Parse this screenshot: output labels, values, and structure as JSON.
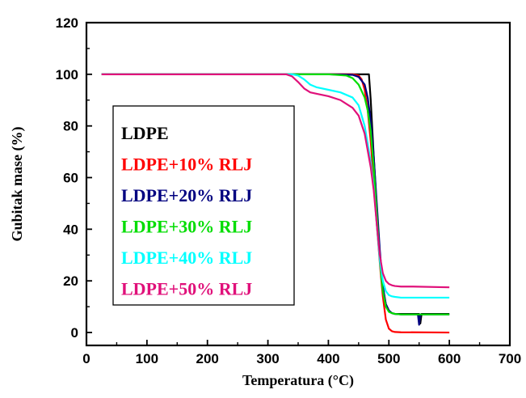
{
  "chart_data": {
    "type": "line",
    "title": "",
    "xlabel": "Temperatura (°C)",
    "ylabel": "Gubitak mase (%)",
    "xlim": [
      0,
      700
    ],
    "ylim": [
      -5,
      120
    ],
    "xticks": [
      0,
      100,
      200,
      300,
      400,
      500,
      600,
      700
    ],
    "yticks": [
      0,
      20,
      40,
      60,
      80,
      100,
      120
    ],
    "grid": false,
    "legend_position": "left",
    "series": [
      {
        "name": "LDPE",
        "color": "#000000",
        "x": [
          25,
          300,
          400,
          460,
          467,
          470,
          475,
          480,
          485,
          490,
          495,
          500,
          505,
          510,
          520,
          550,
          552,
          554,
          556,
          560,
          580,
          600
        ],
        "y": [
          100,
          100,
          100,
          100,
          100,
          90,
          68,
          48,
          30,
          17,
          11,
          8.5,
          7.5,
          7.2,
          7.2,
          7.2,
          3.5,
          7.2,
          7.2,
          7.2,
          7.2,
          7.2
        ]
      },
      {
        "name": "LDPE+10% RLJ",
        "color": "#ff0000",
        "x": [
          25,
          300,
          400,
          440,
          450,
          455,
          460,
          465,
          470,
          475,
          480,
          485,
          490,
          495,
          500,
          505,
          510,
          520,
          600
        ],
        "y": [
          100,
          100,
          100,
          100,
          99.5,
          98,
          94,
          86,
          74,
          58,
          42,
          27,
          14,
          5,
          1.5,
          0.5,
          0.2,
          0.1,
          0
        ]
      },
      {
        "name": "LDPE+20% RLJ",
        "color": "#000080",
        "x": [
          25,
          300,
          400,
          440,
          450,
          460,
          465,
          470,
          475,
          480,
          485,
          490,
          495,
          500,
          505,
          510,
          520,
          548,
          550,
          552,
          554,
          556,
          580,
          600
        ],
        "y": [
          100,
          100,
          100,
          99.8,
          99,
          96,
          91,
          82,
          68,
          50,
          32,
          18,
          11,
          8.5,
          7.5,
          7.2,
          7,
          7,
          3,
          7,
          7,
          7,
          7,
          7
        ]
      },
      {
        "name": "LDPE+30% RLJ",
        "color": "#00dd00",
        "x": [
          25,
          300,
          400,
          430,
          440,
          450,
          460,
          465,
          470,
          475,
          480,
          485,
          490,
          495,
          500,
          505,
          510,
          520,
          600
        ],
        "y": [
          100,
          100,
          100,
          99.5,
          98.5,
          96,
          91,
          86,
          78,
          64,
          46,
          28,
          16,
          10,
          8,
          7.5,
          7.2,
          7,
          7
        ]
      },
      {
        "name": "LDPE+40% RLJ",
        "color": "#00ffff",
        "x": [
          25,
          300,
          340,
          350,
          360,
          370,
          380,
          400,
          420,
          440,
          450,
          460,
          470,
          475,
          480,
          485,
          490,
          495,
          500,
          505,
          510,
          520,
          540,
          600
        ],
        "y": [
          100,
          100,
          100,
          99.5,
          98,
          96,
          95,
          94,
          93,
          91,
          88,
          80,
          66,
          56,
          42,
          28,
          20,
          16,
          14.5,
          14,
          13.8,
          13.5,
          13.5,
          13.5
        ]
      },
      {
        "name": "LDPE+50% RLJ",
        "color": "#e0107a",
        "x": [
          25,
          300,
          330,
          340,
          350,
          360,
          370,
          380,
          400,
          420,
          440,
          450,
          460,
          470,
          475,
          480,
          485,
          490,
          495,
          500,
          505,
          510,
          520,
          540,
          600
        ],
        "y": [
          100,
          100,
          100,
          99.2,
          97,
          94.5,
          93,
          92.5,
          91.5,
          90,
          87,
          84,
          77,
          64,
          55,
          42,
          30,
          23,
          20,
          18.8,
          18.3,
          18,
          17.8,
          17.8,
          17.5
        ]
      }
    ]
  }
}
